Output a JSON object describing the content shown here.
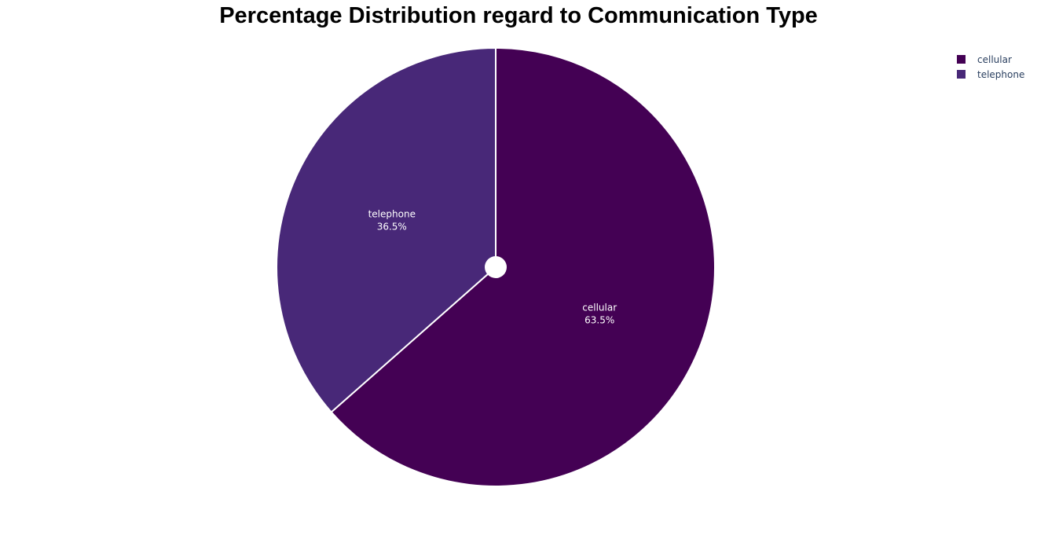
{
  "chart_data": {
    "type": "pie",
    "title": "Percentage Distribution regard to Communication Type",
    "categories": [
      "cellular",
      "telephone"
    ],
    "values": [
      63.5,
      36.5
    ],
    "labels": [
      "63.5%",
      "36.5%"
    ],
    "colors": [
      "#440154",
      "#482878"
    ],
    "legend": {
      "placement": "top-right",
      "entries": [
        "cellular",
        "telephone"
      ]
    }
  }
}
